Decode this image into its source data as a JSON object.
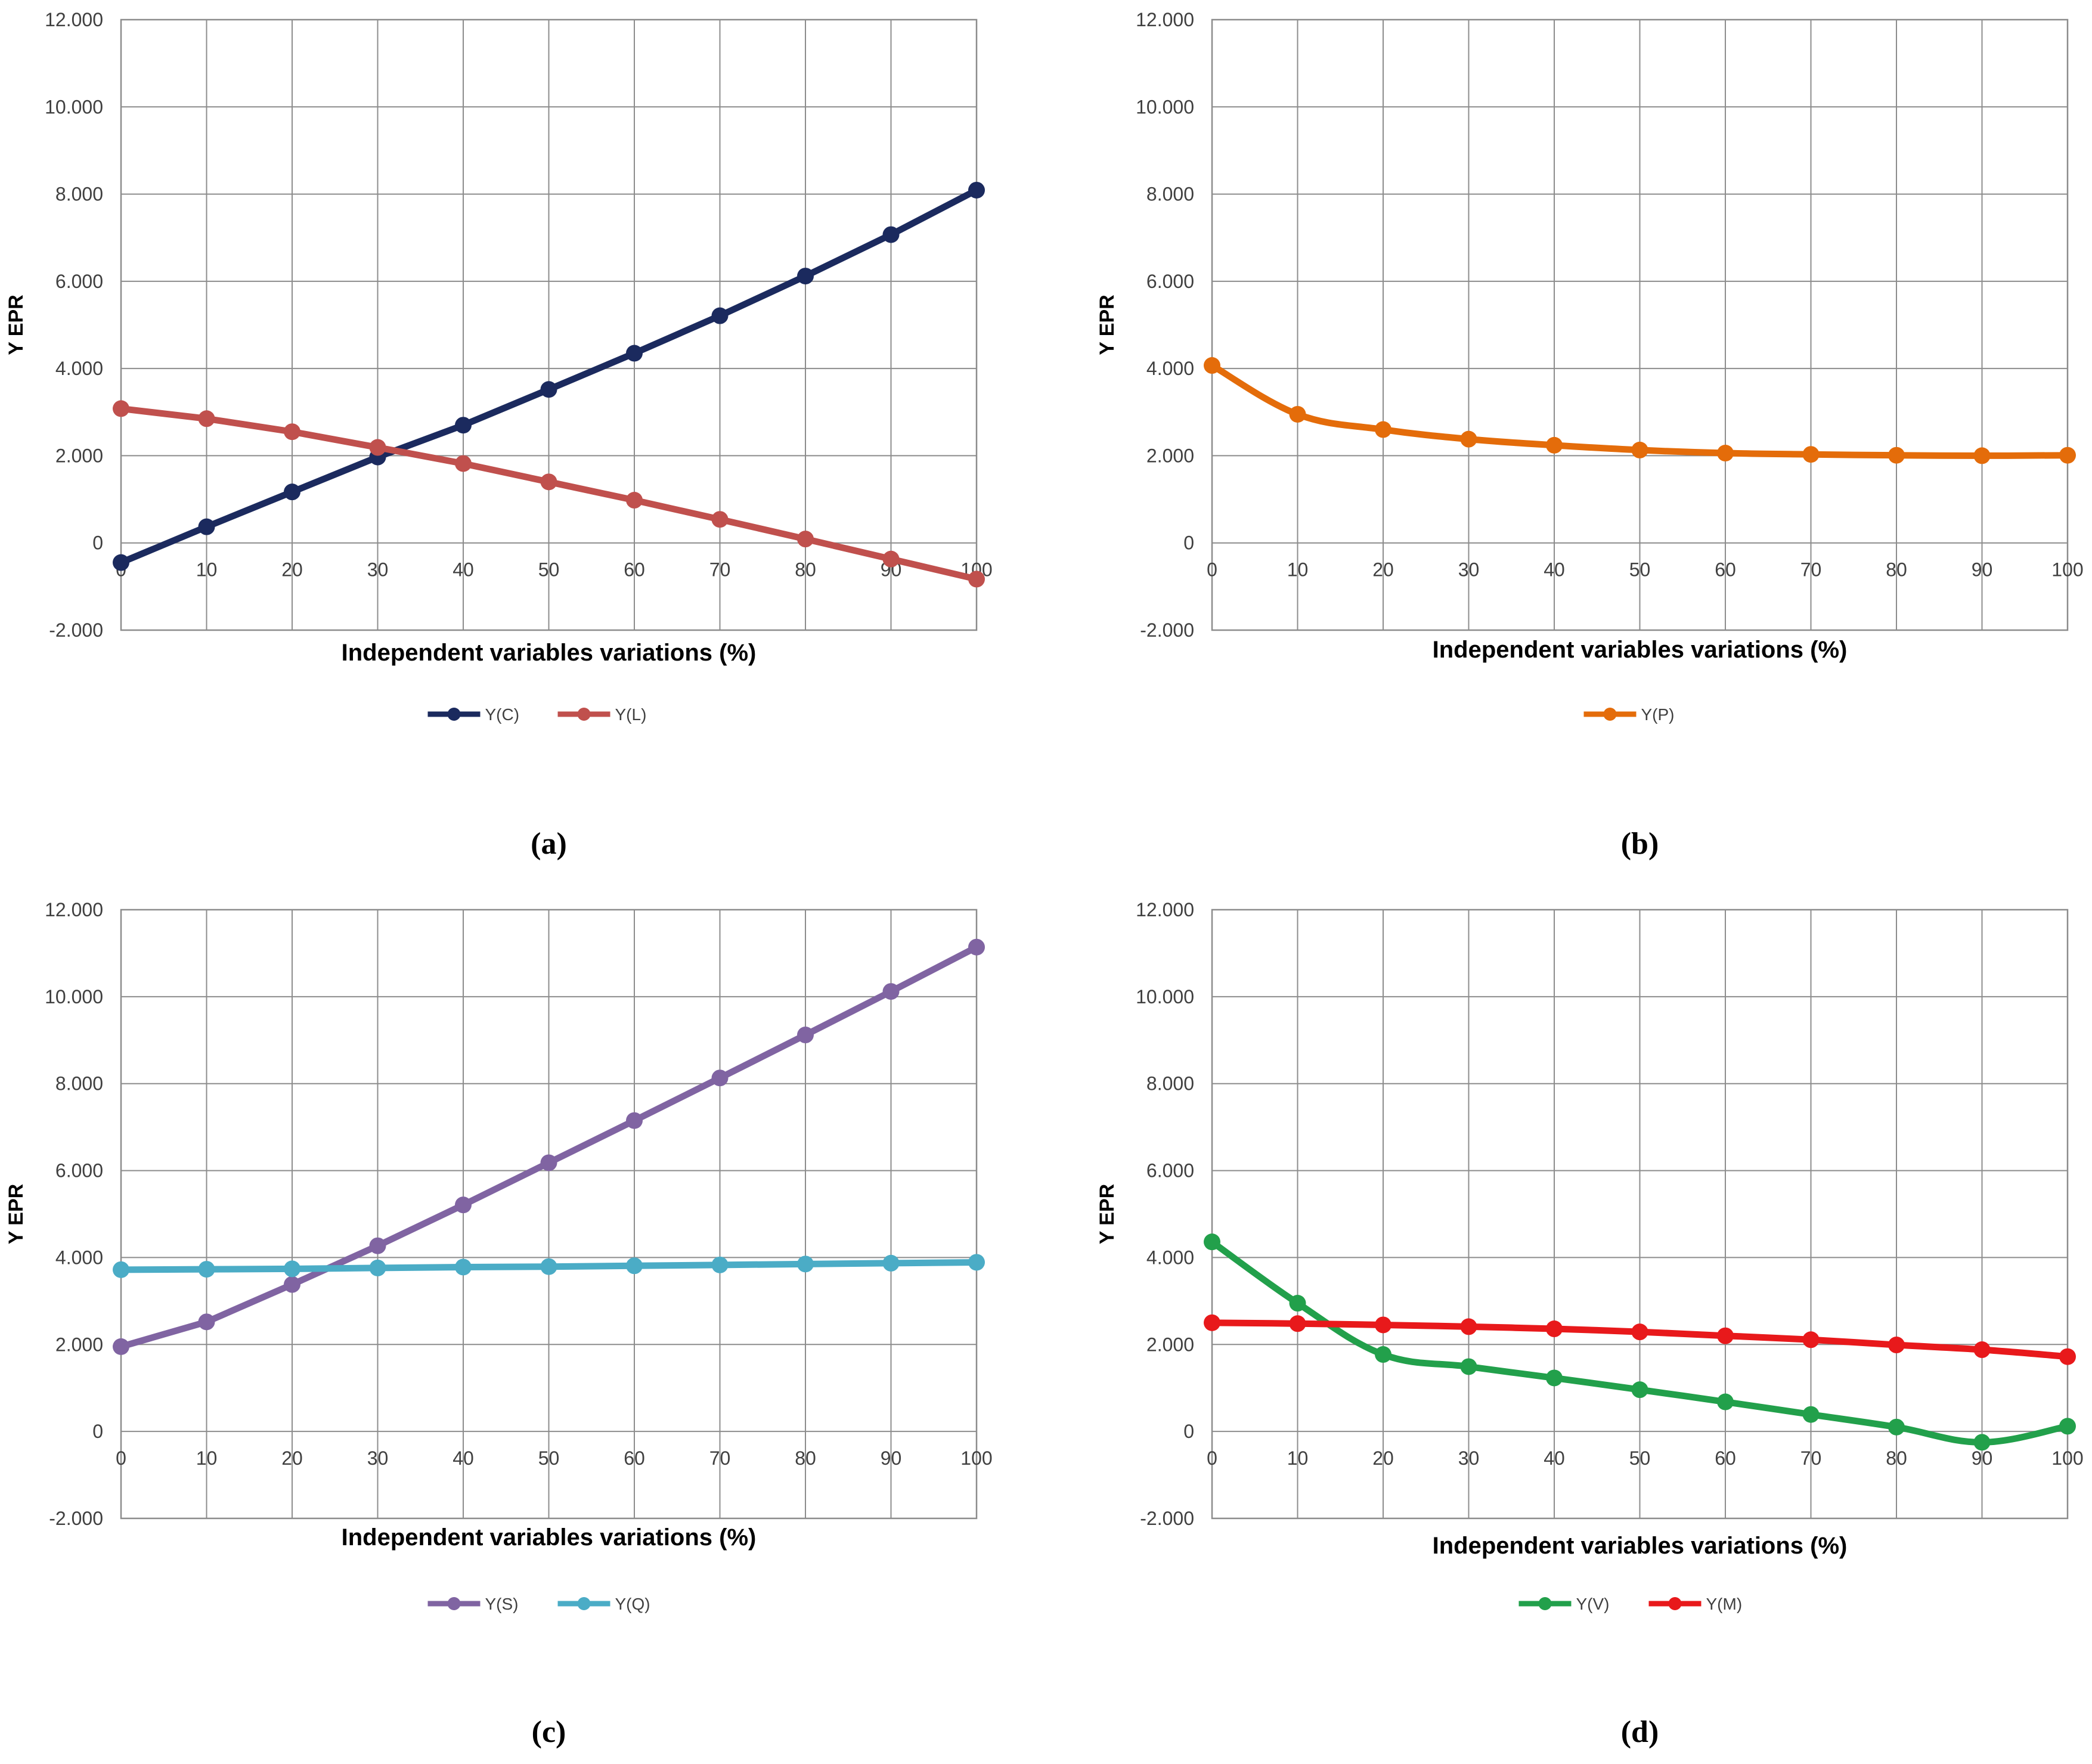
{
  "panels": [
    {
      "label": "(a)",
      "chart_data": {
        "type": "line",
        "x": [
          0,
          10,
          20,
          30,
          40,
          50,
          60,
          70,
          80,
          90,
          100
        ],
        "series": [
          {
            "name": "Y(C)",
            "color": "#1b2a5e",
            "values": [
              -0.45,
              0.37,
              1.17,
              1.97,
              2.7,
              3.52,
              4.35,
              5.21,
              6.12,
              7.07,
              8.09
            ]
          },
          {
            "name": "Y(L)",
            "color": "#c0504d",
            "values": [
              3.08,
              2.85,
              2.55,
              2.19,
              1.82,
              1.4,
              0.98,
              0.54,
              0.09,
              -0.37,
              -0.83
            ]
          }
        ],
        "xlabel": "Independent variables variations (%)",
        "ylabel": "Y EPR",
        "ylim": [
          -2,
          12
        ],
        "yticks": [
          -2,
          0,
          2,
          4,
          6,
          8,
          10,
          12
        ],
        "yticklabels": [
          "-2.000",
          "0",
          "2.000",
          "4.000",
          "6.000",
          "8.000",
          "10.000",
          "12.000"
        ],
        "xticks": [
          0,
          10,
          20,
          30,
          40,
          50,
          60,
          70,
          80,
          90,
          100
        ],
        "grid": true,
        "legend": "bottom",
        "smooth": false
      }
    },
    {
      "label": "(b)",
      "chart_data": {
        "type": "line",
        "x": [
          0,
          10,
          20,
          30,
          40,
          50,
          60,
          70,
          80,
          90,
          100
        ],
        "series": [
          {
            "name": "Y(P)",
            "color": "#e46c0a",
            "values": [
              4.07,
              2.95,
              2.6,
              2.38,
              2.24,
              2.13,
              2.06,
              2.03,
              2.01,
              2.0,
              2.01
            ]
          }
        ],
        "xlabel": "Independent variables variations (%)",
        "ylabel": "Y EPR",
        "ylim": [
          -2,
          12
        ],
        "yticks": [
          -2,
          0,
          2,
          4,
          6,
          8,
          10,
          12
        ],
        "yticklabels": [
          "-2.000",
          "0",
          "2.000",
          "4.000",
          "6.000",
          "8.000",
          "10.000",
          "12.000"
        ],
        "xticks": [
          0,
          10,
          20,
          30,
          40,
          50,
          60,
          70,
          80,
          90,
          100
        ],
        "grid": true,
        "legend": "bottom",
        "smooth": true
      }
    },
    {
      "label": "(c)",
      "chart_data": {
        "type": "line",
        "x": [
          0,
          10,
          20,
          30,
          40,
          50,
          60,
          70,
          80,
          90,
          100
        ],
        "series": [
          {
            "name": "Y(S)",
            "color": "#8064a2",
            "values": [
              1.95,
              2.52,
              3.38,
              4.27,
              5.21,
              6.18,
              7.15,
              8.13,
              9.12,
              10.12,
              11.14
            ]
          },
          {
            "name": "Y(Q)",
            "color": "#4bacc6",
            "values": [
              3.72,
              3.73,
              3.74,
              3.76,
              3.78,
              3.79,
              3.81,
              3.83,
              3.85,
              3.87,
              3.89
            ]
          }
        ],
        "xlabel": "Independent variables variations (%)",
        "ylabel": "Y EPR",
        "ylim": [
          -2,
          12
        ],
        "yticks": [
          -2,
          0,
          2,
          4,
          6,
          8,
          10,
          12
        ],
        "yticklabels": [
          "-2.000",
          "0",
          "2.000",
          "4.000",
          "6.000",
          "8.000",
          "10.000",
          "12.000"
        ],
        "xticks": [
          0,
          10,
          20,
          30,
          40,
          50,
          60,
          70,
          80,
          90,
          100
        ],
        "grid": true,
        "legend": "bottom",
        "smooth": false
      }
    },
    {
      "label": "(d)",
      "chart_data": {
        "type": "line",
        "x": [
          0,
          10,
          20,
          30,
          40,
          50,
          60,
          70,
          80,
          90,
          100
        ],
        "series": [
          {
            "name": "Y(V)",
            "color": "#22a04b",
            "values": [
              4.36,
              2.95,
              1.77,
              1.49,
              1.23,
              0.96,
              0.68,
              0.39,
              0.1,
              -0.25,
              0.12
            ]
          },
          {
            "name": "Y(M)",
            "color": "#e8191b",
            "values": [
              2.5,
              2.48,
              2.45,
              2.41,
              2.36,
              2.29,
              2.2,
              2.11,
              1.99,
              1.88,
              1.72
            ]
          }
        ],
        "xlabel": "Independent variables variations (%)",
        "ylabel": "Y EPR",
        "ylim": [
          -2,
          12
        ],
        "yticks": [
          -2,
          0,
          2,
          4,
          6,
          8,
          10,
          12
        ],
        "yticklabels": [
          "-2.000",
          "0",
          "2.000",
          "4.000",
          "6.000",
          "8.000",
          "10.000",
          "12.000"
        ],
        "xticks": [
          0,
          10,
          20,
          30,
          40,
          50,
          60,
          70,
          80,
          90,
          100
        ],
        "grid": true,
        "legend": "bottom",
        "smooth": true
      }
    }
  ]
}
